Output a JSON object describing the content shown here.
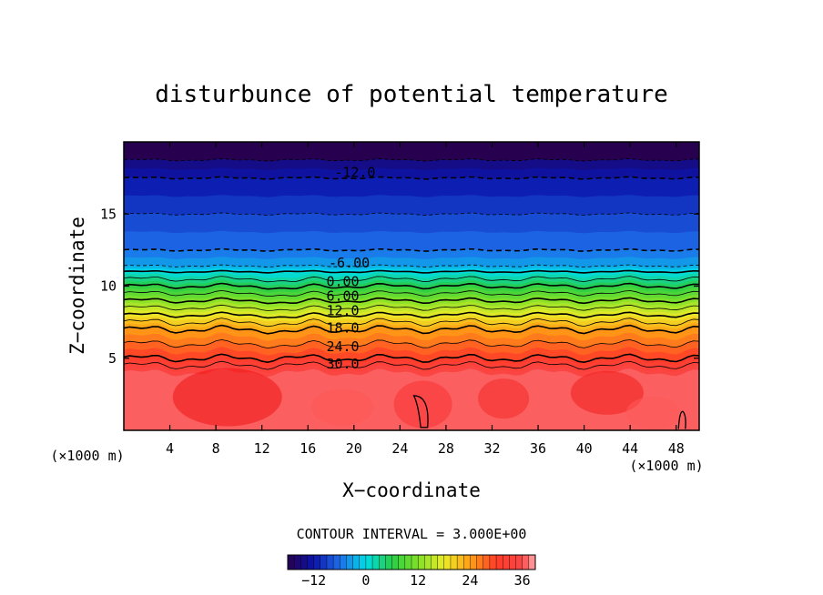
{
  "chart_data": {
    "type": "contour",
    "title": "disturbunce of potential temperature",
    "xlabel": "X−coordinate",
    "ylabel": "Z−coordinate",
    "x_unit": "(×1000 m)",
    "y_unit": "(×1000 m)",
    "xlim": [
      0,
      50
    ],
    "ylim": [
      0,
      20
    ],
    "x_ticks": [
      4,
      8,
      12,
      16,
      20,
      24,
      28,
      32,
      36,
      40,
      44,
      48
    ],
    "y_ticks": [
      5,
      10,
      15
    ],
    "contour_interval_text": "CONTOUR INTERVAL = 3.000E+00",
    "contour_interval": 3.0,
    "value_range": [
      -18,
      39
    ],
    "field_profile": {
      "z": [
        0,
        4,
        5,
        6,
        7,
        8,
        9,
        10,
        10.5,
        11,
        11.4,
        12.5,
        15,
        17.5,
        20
      ],
      "value": [
        36,
        36,
        30,
        27,
        24,
        18,
        12,
        6,
        3,
        0,
        -3,
        -6,
        -9,
        -12,
        -18
      ]
    },
    "contour_labels": [
      {
        "text": "-12.0",
        "x": 18.3,
        "z": 17.9
      },
      {
        "text": "-6.00",
        "x": 17.8,
        "z": 11.6
      },
      {
        "text": "0.00",
        "x": 17.6,
        "z": 10.3
      },
      {
        "text": "6.00",
        "x": 17.6,
        "z": 9.3
      },
      {
        "text": "12.0",
        "x": 17.6,
        "z": 8.3
      },
      {
        "text": "18.0",
        "x": 17.6,
        "z": 7.1
      },
      {
        "text": "24.0",
        "x": 17.6,
        "z": 5.8
      },
      {
        "text": "30.0",
        "x": 17.6,
        "z": 4.6
      }
    ],
    "colorbar": {
      "ticks": [
        -12,
        0,
        12,
        24,
        36
      ],
      "tick_labels": [
        "−12",
        "0",
        "12",
        "24",
        "36"
      ],
      "range": [
        -18,
        39
      ]
    },
    "grid": false,
    "legend": "bottom-center colorbar"
  }
}
